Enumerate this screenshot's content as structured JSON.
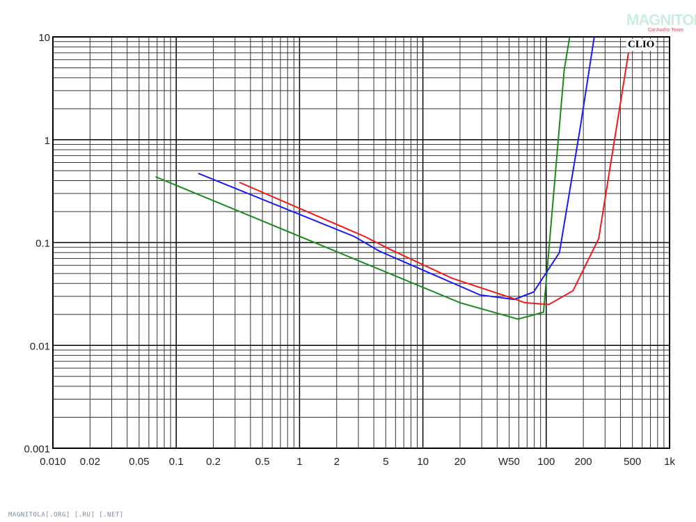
{
  "chart_data": {
    "type": "line",
    "xscale": "log",
    "yscale": "log",
    "xlim": [
      0.01,
      1000
    ],
    "ylim": [
      0.001,
      10
    ],
    "grid": true,
    "x_tick_labels": [
      {
        "value": 0.01,
        "label": "0.010"
      },
      {
        "value": 0.02,
        "label": "0.02"
      },
      {
        "value": 0.05,
        "label": "0.05"
      },
      {
        "value": 0.1,
        "label": "0.1"
      },
      {
        "value": 0.2,
        "label": "0.2"
      },
      {
        "value": 0.5,
        "label": "0.5"
      },
      {
        "value": 1,
        "label": "1"
      },
      {
        "value": 2,
        "label": "2"
      },
      {
        "value": 5,
        "label": "5"
      },
      {
        "value": 10,
        "label": "10"
      },
      {
        "value": 20,
        "label": "20"
      },
      {
        "value": 50,
        "label": "W50"
      },
      {
        "value": 100,
        "label": "100"
      },
      {
        "value": 200,
        "label": "200"
      },
      {
        "value": 500,
        "label": "500"
      },
      {
        "value": 1000,
        "label": "1k"
      }
    ],
    "y_tick_labels": [
      {
        "value": 10,
        "label": "10"
      },
      {
        "value": 1,
        "label": "1"
      },
      {
        "value": 0.1,
        "label": "0.1"
      },
      {
        "value": 0.01,
        "label": "0.01"
      },
      {
        "value": 0.001,
        "label": "0.001"
      }
    ],
    "series": [
      {
        "color": "#1a8a1a",
        "x": [
          0.068,
          20,
          59,
          95,
          140,
          155
        ],
        "y": [
          0.436,
          0.026,
          0.018,
          0.021,
          4.8,
          10
        ]
      },
      {
        "color": "#1a1aee",
        "x": [
          0.151,
          2.8,
          4.4,
          29,
          55,
          79,
          128,
          190,
          245
        ],
        "y": [
          0.471,
          0.114,
          0.083,
          0.031,
          0.028,
          0.033,
          0.08,
          1.38,
          10
        ]
      },
      {
        "color": "#ee1a1a",
        "x": [
          0.325,
          3.4,
          5.4,
          17.2,
          52,
          67,
          105,
          165,
          266,
          465
        ],
        "y": [
          0.385,
          0.114,
          0.086,
          0.045,
          0.029,
          0.026,
          0.025,
          0.034,
          0.109,
          7.1
        ]
      }
    ]
  },
  "watermark": {
    "logo": "MAGNITOLA",
    "logo_sub": "CarAudio Team",
    "brand": "CLIO"
  },
  "footer": "MAGNITOLA[.ORG] [.RU] [.NET]"
}
